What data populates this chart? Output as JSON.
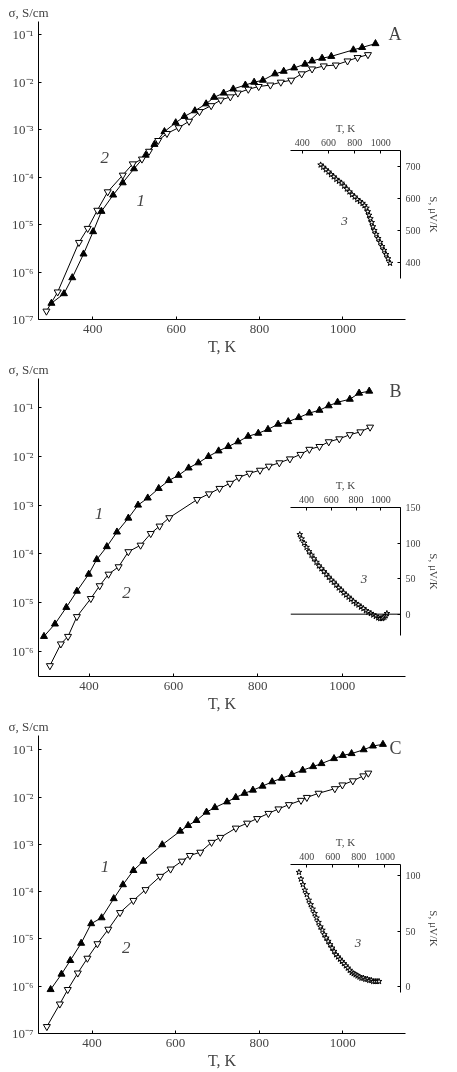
{
  "chart_data": [
    {
      "type": "line",
      "title": "A",
      "xlabel": "T, K",
      "ylabel": "σ, S/cm",
      "log": "y",
      "xlim": [
        270,
        1150
      ],
      "ylim": [
        1e-07,
        0.19
      ],
      "xticks": [
        400,
        600,
        800,
        1000
      ],
      "yticks": [
        {
          "value": 1e-07,
          "label": "10⁻⁷"
        },
        {
          "value": 1e-06,
          "label": "10⁻⁶"
        },
        {
          "value": 1e-05,
          "label": "10⁻⁵"
        },
        {
          "value": 0.0001,
          "label": "10⁻⁴"
        },
        {
          "value": 0.001,
          "label": "10⁻³"
        },
        {
          "value": 0.01,
          "label": "10⁻²"
        },
        {
          "value": 0.1,
          "label": "10⁻¹"
        }
      ],
      "series": [
        {
          "color": "#000000",
          "marker": "triangle",
          "x": [
            301,
            331,
            351,
            378,
            401,
            421,
            449,
            472,
            499,
            527,
            548,
            572,
            599,
            620,
            645,
            672,
            691,
            714,
            737,
            766,
            787,
            808,
            837,
            858,
            883,
            909,
            926,
            950,
            972,
            1025,
            1046,
            1078
          ],
          "values": [
            2.2e-07,
            3.5e-07,
            7.6e-07,
            2.4e-06,
            7.1e-06,
            1.9e-05,
            4.2e-05,
            7.6e-05,
            0.00015,
            0.00029,
            0.00049,
            0.00091,
            0.0014,
            0.0019,
            0.0025,
            0.0035,
            0.0048,
            0.0059,
            0.0072,
            0.0087,
            0.01,
            0.011,
            0.015,
            0.017,
            0.02,
            0.024,
            0.028,
            0.032,
            0.035,
            0.048,
            0.054,
            0.065
          ]
        },
        {
          "color": "#000000",
          "marker": "triangle",
          "x": [
            289,
            316,
            367,
            388,
            411,
            436,
            472,
            496,
            518,
            535,
            557,
            578,
            606,
            631,
            656,
            684,
            707,
            730,
            748,
            773,
            798,
            826,
            851,
            876,
            901,
            926,
            954,
            983,
            1011,
            1035,
            1060
          ],
          "values": [
            1.5e-07,
            3.8e-07,
            4.2e-06,
            8.3e-06,
            2e-05,
            4.9e-05,
            0.00011,
            0.00019,
            0.00024,
            0.00035,
            0.00059,
            0.00083,
            0.0011,
            0.0015,
            0.0024,
            0.0032,
            0.0042,
            0.0049,
            0.0059,
            0.0071,
            0.0081,
            0.0087,
            0.01,
            0.011,
            0.015,
            0.019,
            0.022,
            0.023,
            0.028,
            0.033,
            0.038
          ]
        }
      ],
      "annotations": [
        "1",
        "2"
      ]
    },
    {
      "type": "scatter",
      "xlabel": "T, K",
      "ylabel": "S, μV/K",
      "xlim": [
        310,
        1150
      ],
      "ylim": [
        350,
        750
      ],
      "xticks": [
        400,
        600,
        800,
        1000
      ],
      "yticks": [
        400,
        500,
        600,
        700
      ],
      "series": [
        {
          "color": "#000000",
          "marker": "star",
          "x": [
            540,
            560,
            580,
            600,
            620,
            640,
            660,
            680,
            700,
            720,
            740,
            760,
            780,
            800,
            820,
            840,
            860,
            875,
            890,
            900,
            910,
            920,
            930,
            940,
            950,
            965,
            980,
            995,
            1010,
            1025,
            1040,
            1055,
            1070
          ],
          "values": [
            705,
            698,
            690,
            683,
            675,
            668,
            660,
            654,
            648,
            639,
            630,
            621,
            612,
            605,
            597,
            591,
            585,
            578,
            570,
            559,
            548,
            537,
            525,
            512,
            500,
            488,
            475,
            463,
            450,
            438,
            425,
            412,
            398
          ]
        }
      ],
      "annotations": [
        "3"
      ]
    },
    {
      "type": "line",
      "title": "B",
      "xlabel": "T, K",
      "ylabel": "σ, S/cm",
      "log": "y",
      "xlim": [
        280,
        1150
      ],
      "ylim": [
        3e-07,
        0.4
      ],
      "xticks": [
        400,
        600,
        800,
        1000
      ],
      "yticks": [
        {
          "value": 1e-06,
          "label": "10⁻⁶"
        },
        {
          "value": 1e-05,
          "label": "10⁻⁵"
        },
        {
          "value": 0.0001,
          "label": "10⁻⁴"
        },
        {
          "value": 0.001,
          "label": "10⁻³"
        },
        {
          "value": 0.01,
          "label": "10⁻²"
        },
        {
          "value": 0.1,
          "label": "10⁻¹"
        }
      ],
      "series": [
        {
          "color": "#000000",
          "marker": "triangle",
          "x": [
            293,
            319,
            346,
            371,
            399,
            418,
            442,
            466,
            493,
            516,
            539,
            565,
            589,
            612,
            636,
            659,
            683,
            707,
            730,
            753,
            777,
            801,
            824,
            848,
            872,
            897,
            922,
            946,
            968,
            989,
            1018,
            1040,
            1064
          ],
          "values": [
            2e-06,
            3.6e-06,
            7.9e-06,
            1.7e-05,
            3.8e-05,
            7.6e-05,
            0.00014,
            0.00028,
            0.00054,
            0.001,
            0.0014,
            0.0022,
            0.0032,
            0.0041,
            0.0058,
            0.0074,
            0.01,
            0.013,
            0.016,
            0.02,
            0.026,
            0.03,
            0.036,
            0.046,
            0.052,
            0.063,
            0.078,
            0.089,
            0.11,
            0.13,
            0.15,
            0.2,
            0.22
          ]
        },
        {
          "color": "#000000",
          "marker": "triangle",
          "x": [
            307,
            333,
            350,
            371,
            404,
            425,
            446,
            470,
            493,
            522,
            546,
            567,
            590,
            656,
            684,
            709,
            734,
            755,
            780,
            805,
            826,
            851,
            876,
            901,
            922,
            946,
            968,
            993,
            1018,
            1043,
            1066
          ],
          "values": [
            5e-07,
            1.4e-06,
            2e-06,
            5.1e-06,
            1.2e-05,
            2.2e-05,
            3.8e-05,
            5.4e-05,
            0.00011,
            0.00015,
            0.00026,
            0.00037,
            0.00055,
            0.0013,
            0.0017,
            0.0022,
            0.0028,
            0.0037,
            0.0045,
            0.0052,
            0.0063,
            0.0074,
            0.0089,
            0.011,
            0.014,
            0.016,
            0.02,
            0.023,
            0.028,
            0.032,
            0.04
          ]
        }
      ],
      "annotations": [
        "1",
        "2"
      ]
    },
    {
      "type": "scatter",
      "xlabel": "T, K",
      "ylabel": "S, μV/K",
      "xlim": [
        270,
        1160
      ],
      "ylim": [
        -30,
        150
      ],
      "xticks": [
        400,
        600,
        800,
        1000
      ],
      "yticks": [
        0,
        50,
        100,
        150
      ],
      "series": [
        {
          "color": "#000000",
          "marker": "star",
          "x": [
            345,
            360,
            380,
            400,
            420,
            440,
            460,
            480,
            500,
            520,
            540,
            560,
            580,
            600,
            620,
            640,
            660,
            680,
            700,
            720,
            740,
            760,
            780,
            800,
            820,
            840,
            860,
            880,
            900,
            920,
            940,
            960,
            980,
            995,
            1010,
            1020,
            1030,
            1040,
            1050
          ],
          "values": [
            112,
            106,
            100,
            94,
            88,
            83,
            78,
            73,
            68,
            64,
            60,
            56,
            52,
            48,
            45,
            41,
            37,
            34,
            30,
            27,
            24,
            21,
            18,
            15,
            13,
            10,
            8,
            5,
            3,
            1,
            -1,
            -3,
            -5,
            -6,
            -6,
            -5,
            -4,
            -2,
            1
          ]
        }
      ],
      "ref_lines": [
        {
          "axis": "y",
          "value": 0,
          "color": "#000000"
        }
      ],
      "annotations": [
        "3"
      ]
    },
    {
      "type": "line",
      "title": "C",
      "xlabel": "T, K",
      "ylabel": "σ, S/cm",
      "log": "y",
      "xlim": [
        272,
        1150
      ],
      "ylim": [
        1e-07,
        0.2
      ],
      "xticks": [
        400,
        600,
        800,
        1000
      ],
      "yticks": [
        {
          "value": 1e-07,
          "label": "10⁻⁷"
        },
        {
          "value": 1e-06,
          "label": "10⁻⁶"
        },
        {
          "value": 1e-05,
          "label": "10⁻⁵"
        },
        {
          "value": 0.0001,
          "label": "10⁻⁴"
        },
        {
          "value": 0.001,
          "label": "10⁻³"
        },
        {
          "value": 0.01,
          "label": "10⁻²"
        },
        {
          "value": 0.1,
          "label": "10⁻¹"
        }
      ],
      "series": [
        {
          "color": "#000000",
          "marker": "triangle",
          "x": [
            301,
            327,
            348,
            374,
            398,
            423,
            452,
            474,
            499,
            523,
            568,
            611,
            630,
            650,
            674,
            694,
            723,
            744,
            765,
            785,
            808,
            831,
            854,
            878,
            904,
            929,
            949,
            979,
            1000,
            1021,
            1050,
            1072,
            1096
          ],
          "values": [
            8.5e-07,
            1.8e-06,
            3.5e-06,
            8.1e-06,
            2.1e-05,
            2.8e-05,
            7.1e-05,
            0.00014,
            0.00028,
            0.00044,
            0.00098,
            0.0019,
            0.0025,
            0.0032,
            0.0048,
            0.006,
            0.0079,
            0.0098,
            0.012,
            0.014,
            0.017,
            0.021,
            0.025,
            0.03,
            0.037,
            0.044,
            0.051,
            0.065,
            0.076,
            0.083,
            0.1,
            0.12,
            0.13
          ]
        },
        {
          "color": "#000000",
          "marker": "triangle",
          "x": [
            292,
            323,
            342,
            366,
            389,
            413,
            439,
            467,
            499,
            528,
            563,
            588,
            615,
            634,
            659,
            686,
            707,
            744,
            771,
            795,
            822,
            846,
            871,
            900,
            914,
            942,
            981,
            999,
            1024,
            1049,
            1061
          ],
          "values": [
            1.4e-07,
            4.2e-07,
            8.5e-07,
            1.9e-06,
            3.9e-06,
            7.9e-06,
            1.6e-05,
            3.6e-05,
            6.5e-05,
            0.00011,
            0.00021,
            0.0003,
            0.00044,
            0.00058,
            0.00068,
            0.0011,
            0.0014,
            0.0022,
            0.0028,
            0.0035,
            0.0045,
            0.0056,
            0.0069,
            0.0085,
            0.0098,
            0.012,
            0.015,
            0.018,
            0.022,
            0.028,
            0.032
          ]
        }
      ],
      "annotations": [
        "1",
        "2"
      ]
    },
    {
      "type": "scatter",
      "xlabel": "T, K",
      "ylabel": "S, μV/K",
      "xlim": [
        275,
        1120
      ],
      "ylim": [
        -5,
        110
      ],
      "xticks": [
        400,
        600,
        800,
        1000
      ],
      "yticks": [
        0,
        50,
        100
      ],
      "series": [
        {
          "color": "#000000",
          "marker": "star",
          "x": [
            340,
            355,
            370,
            385,
            400,
            415,
            430,
            445,
            460,
            475,
            490,
            505,
            520,
            535,
            550,
            565,
            580,
            595,
            610,
            625,
            640,
            655,
            670,
            685,
            700,
            715,
            730,
            745,
            760,
            775,
            790,
            805,
            820,
            835,
            850,
            865,
            880,
            895,
            910,
            925,
            940,
            955
          ],
          "values": [
            103,
            97,
            92,
            87,
            83,
            78,
            74,
            70,
            66,
            62,
            58,
            54,
            51,
            47,
            44,
            41,
            38,
            35,
            32,
            29,
            27,
            25,
            23,
            21,
            19,
            17,
            15,
            13,
            12,
            11,
            10,
            9,
            8,
            8,
            7,
            7,
            6,
            6,
            5,
            5,
            5,
            5
          ]
        }
      ],
      "annotations": [
        "3"
      ]
    }
  ]
}
